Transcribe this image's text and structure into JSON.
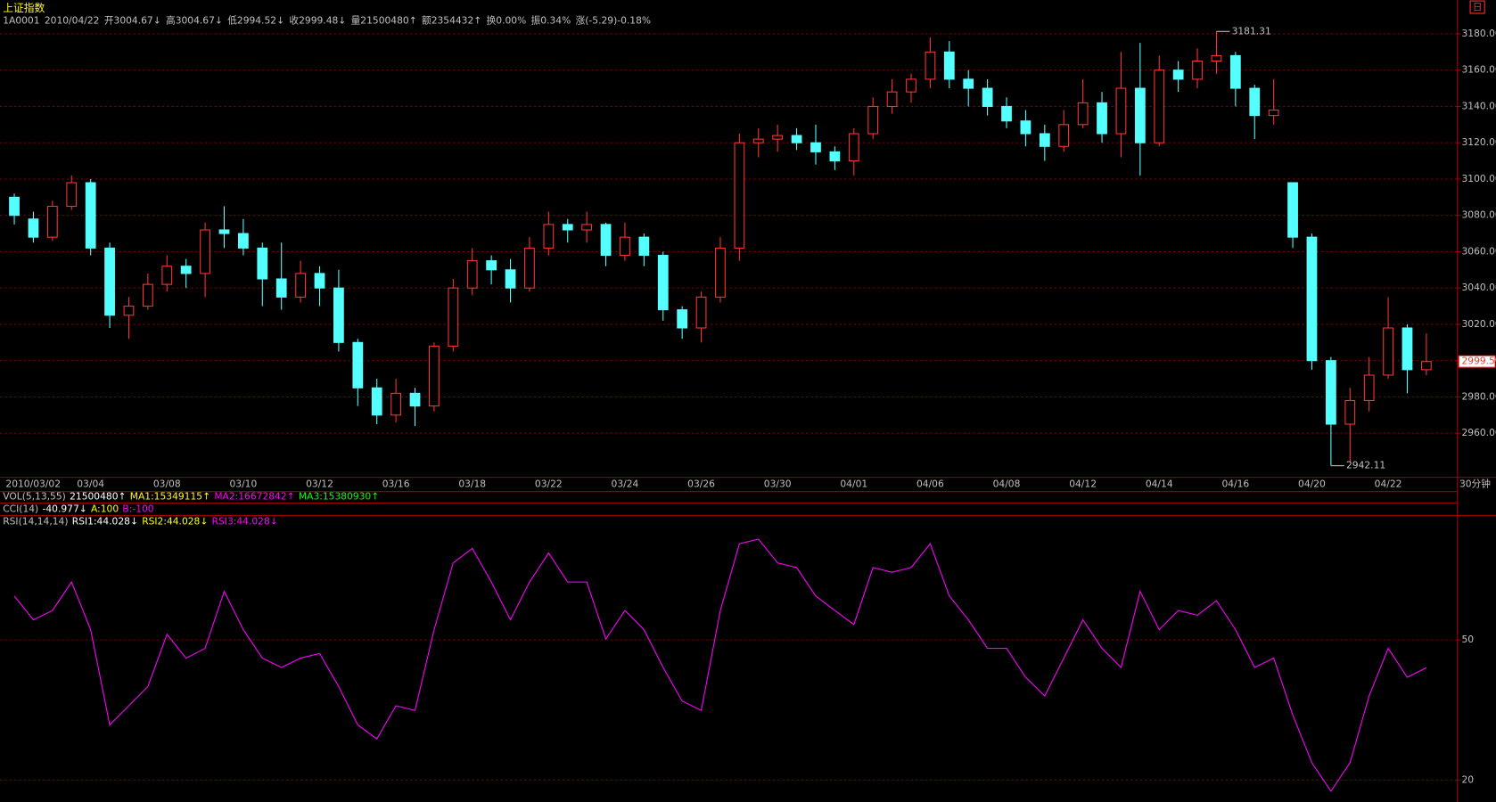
{
  "header": {
    "title": "上证指数",
    "period_icon": "日",
    "info": [
      "1A0001",
      "2010/04/22",
      "开3004.67↓",
      "高3004.67↓",
      "低2994.52↓",
      "收2999.48↓",
      "量21500480↑",
      "额2354432↑",
      "换0.00%",
      "振0.34%",
      "涨(-5.29)-0.18%"
    ],
    "period": "30分钟"
  },
  "indicators": [
    {
      "items": [
        {
          "text": "VOL(5,13,55)",
          "color": "#c0c0c0"
        },
        {
          "text": "21500480↑",
          "color": "#ffffff"
        },
        {
          "text": "MA1:15349115↑",
          "color": "#ffff00"
        },
        {
          "text": "MA2:16672842↑",
          "color": "#ff00ff"
        },
        {
          "text": "MA3:15380930↑",
          "color": "#00ff00"
        }
      ]
    },
    {
      "items": [
        {
          "text": "CCI(14)",
          "color": "#c0c0c0"
        },
        {
          "text": "-40.977↓",
          "color": "#ffffff"
        },
        {
          "text": "A:100",
          "color": "#ffff00"
        },
        {
          "text": "B:-100",
          "color": "#ff00ff"
        }
      ]
    },
    {
      "items": [
        {
          "text": "RSI(14,14,14)",
          "color": "#c0c0c0"
        },
        {
          "text": "RSI1:44.028↓",
          "color": "#ffffff"
        },
        {
          "text": "RSI2:44.028↓",
          "color": "#ffff00"
        },
        {
          "text": "RSI3:44.028↓",
          "color": "#ff00ff"
        }
      ]
    }
  ],
  "chart_data": [
    {
      "type": "candlestick",
      "categories": [
        "2010/03/02",
        null,
        null,
        null,
        "03/04",
        null,
        null,
        null,
        "03/08",
        null,
        null,
        null,
        "03/10",
        null,
        null,
        null,
        "03/12",
        null,
        null,
        null,
        "03/16",
        null,
        null,
        null,
        "03/18",
        null,
        null,
        null,
        "03/22",
        null,
        null,
        null,
        "03/24",
        null,
        null,
        null,
        "03/26",
        null,
        null,
        null,
        "03/30",
        null,
        null,
        null,
        "04/01",
        null,
        null,
        null,
        "04/06",
        null,
        null,
        null,
        "04/08",
        null,
        null,
        null,
        "04/12",
        null,
        null,
        null,
        "04/14",
        null,
        null,
        null,
        "04/16",
        null,
        null,
        null,
        "04/20",
        null,
        null,
        null,
        "04/22",
        null,
        null
      ],
      "open": [
        3090,
        3078,
        3068,
        3085,
        3098,
        3062,
        3025,
        3030,
        3042,
        3052,
        3048,
        3072,
        3070,
        3062,
        3045,
        3035,
        3048,
        3040,
        3010,
        2985,
        2970,
        2982,
        2975,
        3008,
        3040,
        3055,
        3050,
        3040,
        3062,
        3075,
        3072,
        3075,
        3058,
        3068,
        3058,
        3028,
        3018,
        3035,
        3062,
        3120,
        3122,
        3124,
        3120,
        3115,
        3110,
        3125,
        3140,
        3148,
        3155,
        3170,
        3155,
        3150,
        3140,
        3132,
        3125,
        3118,
        3130,
        3142,
        3125,
        3150,
        3120,
        3160,
        3155,
        3165,
        3168,
        3150,
        3135,
        3098,
        3068,
        3000,
        2965,
        2978,
        2992,
        3018,
        2995
      ],
      "high": [
        3092,
        3082,
        3088,
        3102,
        3100,
        3065,
        3035,
        3048,
        3058,
        3056,
        3076,
        3085,
        3078,
        3065,
        3065,
        3055,
        3052,
        3050,
        3012,
        2990,
        2990,
        2985,
        3010,
        3045,
        3062,
        3058,
        3056,
        3068,
        3082,
        3078,
        3082,
        3076,
        3076,
        3070,
        3060,
        3030,
        3038,
        3068,
        3125,
        3128,
        3130,
        3128,
        3130,
        3118,
        3128,
        3145,
        3155,
        3158,
        3178,
        3176,
        3160,
        3155,
        3145,
        3138,
        3130,
        3138,
        3155,
        3148,
        3170,
        3175,
        3168,
        3165,
        3172,
        3181.31,
        3170,
        3152,
        3155,
        3098,
        3070,
        3002,
        2985,
        3002,
        3035,
        3020,
        3015
      ],
      "low": [
        3075,
        3065,
        3066,
        3083,
        3058,
        3018,
        3012,
        3028,
        3038,
        3040,
        3035,
        3062,
        3058,
        3030,
        3028,
        3032,
        3030,
        3005,
        2975,
        2965,
        2966,
        2964,
        2972,
        3005,
        3036,
        3042,
        3032,
        3038,
        3058,
        3065,
        3065,
        3052,
        3055,
        3052,
        3022,
        3012,
        3010,
        3032,
        3055,
        3112,
        3115,
        3116,
        3108,
        3105,
        3102,
        3122,
        3136,
        3142,
        3150,
        3150,
        3140,
        3135,
        3128,
        3118,
        3110,
        3115,
        3128,
        3120,
        3112,
        3102,
        3118,
        3148,
        3150,
        3158,
        3140,
        3122,
        3130,
        3062,
        2995,
        2942.11,
        2944,
        2972,
        2990,
        2982,
        2992
      ],
      "close": [
        3080,
        3068,
        3085,
        3098,
        3062,
        3025,
        3030,
        3042,
        3052,
        3048,
        3072,
        3070,
        3062,
        3045,
        3035,
        3048,
        3040,
        3010,
        2985,
        2970,
        2982,
        2975,
        3008,
        3040,
        3055,
        3050,
        3040,
        3062,
        3075,
        3072,
        3075,
        3058,
        3068,
        3058,
        3028,
        3018,
        3035,
        3062,
        3120,
        3122,
        3124,
        3120,
        3115,
        3110,
        3125,
        3140,
        3148,
        3155,
        3170,
        3155,
        3150,
        3140,
        3132,
        3125,
        3118,
        3130,
        3142,
        3125,
        3150,
        3120,
        3160,
        3155,
        3165,
        3168,
        3150,
        3135,
        3138,
        3068,
        3000,
        2965,
        2978,
        2992,
        3018,
        2995,
        2999.48
      ],
      "up_color": "#ff3232",
      "down_color": "#54ffff",
      "ylim": [
        2936,
        3196
      ],
      "yticks": [
        {
          "value": 2960,
          "label": "2960.00"
        },
        {
          "value": 2980,
          "label": "2980.00"
        },
        {
          "value": 3000,
          "label": "3000.00"
        },
        {
          "value": 3020,
          "label": "3020.00"
        },
        {
          "value": 3040,
          "label": "3040.00"
        },
        {
          "value": 3060,
          "label": "3060.00"
        },
        {
          "value": 3080,
          "label": "3080.00"
        },
        {
          "value": 3100,
          "label": "3100.00"
        },
        {
          "value": 3120,
          "label": "3120.00"
        },
        {
          "value": 3140,
          "label": "3140.00"
        },
        {
          "value": 3160,
          "label": "3160.00"
        },
        {
          "value": 3180,
          "label": "3180.00"
        }
      ],
      "grid": true,
      "high_marker": 3181.31,
      "low_marker": 2942.11,
      "last_price": 2999.5
    },
    {
      "type": "line",
      "color": "#ff00ff",
      "values": [
        59.4,
        54.3,
        56.3,
        62.4,
        52.2,
        31.8,
        35.9,
        40,
        51.2,
        46.1,
        48.2,
        60.4,
        52.2,
        46.1,
        44.1,
        46.1,
        47.1,
        40,
        31.8,
        28.8,
        35.9,
        34.9,
        52.2,
        66.5,
        69.6,
        62.4,
        54.3,
        62.4,
        68.6,
        62.4,
        62.4,
        50.2,
        56.3,
        52.2,
        44.1,
        36.9,
        34.9,
        56.3,
        70.6,
        71.6,
        66.5,
        65.5,
        59.4,
        56.3,
        53.3,
        65.5,
        64.5,
        65.5,
        70.6,
        59.4,
        54.3,
        48.2,
        48.2,
        42,
        38,
        46.1,
        54.3,
        48.2,
        44.1,
        60.4,
        52.2,
        56.3,
        55.3,
        58.4,
        52.2,
        44.1,
        46.1,
        33.9,
        23.7,
        17.6,
        23.7,
        38,
        48.2,
        42,
        44.03
      ],
      "ylim": [
        15.9,
        73.7
      ],
      "yticks": [
        20,
        50
      ],
      "grid": true
    }
  ]
}
